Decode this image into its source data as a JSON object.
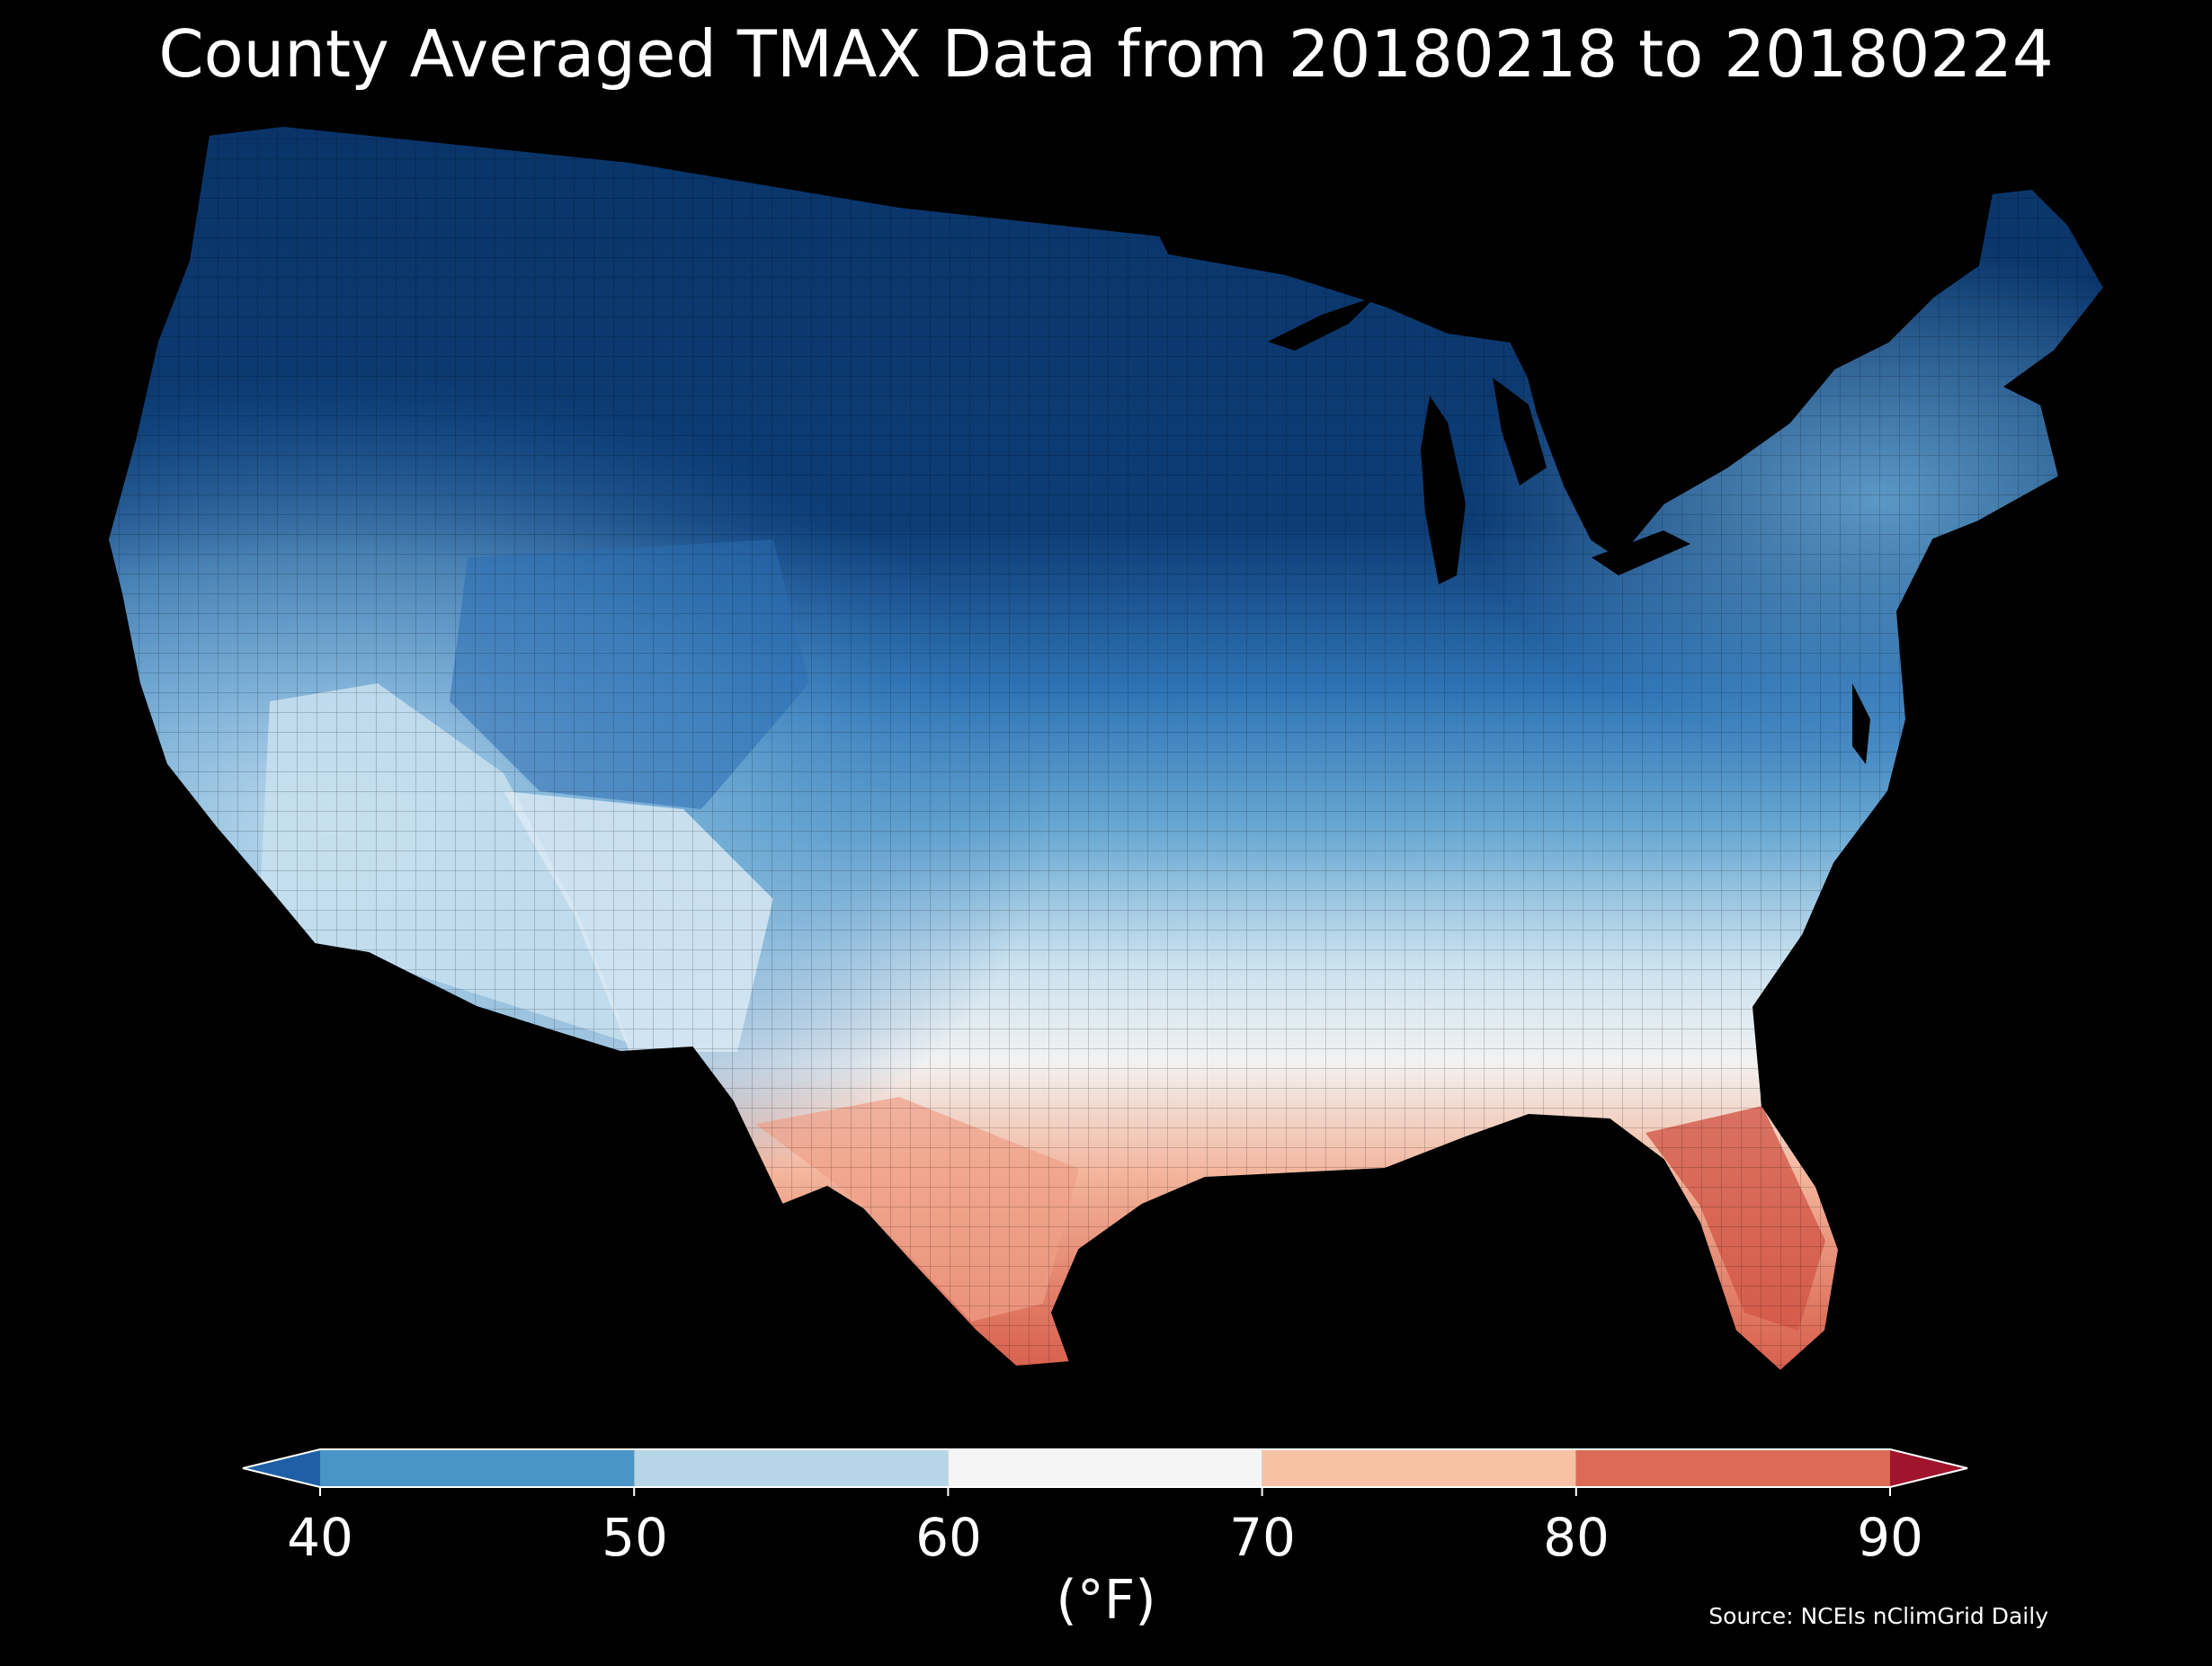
{
  "title": "County Averaged TMAX Data from 20180218 to 20180224",
  "source": "Source: NCEIs nClimGrid Daily",
  "colorbar": {
    "label": "(°F)",
    "ticks": [
      "40",
      "50",
      "60",
      "70",
      "80",
      "90"
    ],
    "bins": [
      {
        "range": "<40",
        "color": "#1f5fa5"
      },
      {
        "range": "40-50",
        "color": "#4995c6"
      },
      {
        "range": "50-60",
        "color": "#b6d6e8"
      },
      {
        "range": "60-70",
        "color": "#f5f5f5"
      },
      {
        "range": "70-80",
        "color": "#f8c1a4"
      },
      {
        "range": "80-90",
        "color": "#dc6a55"
      },
      {
        "range": ">90",
        "color": "#a0142c"
      }
    ]
  },
  "map_regions": [
    {
      "region": "northern-plains",
      "color": "#0a3468"
    },
    {
      "region": "northwest",
      "color": "#2a6fb5"
    },
    {
      "region": "great-basin",
      "color": "#4a90c8"
    },
    {
      "region": "central-plains",
      "color": "#5aa0cf"
    },
    {
      "region": "midwest-northeast",
      "color": "#a9cfe5"
    },
    {
      "region": "southwest-desert",
      "color": "#d2e5f1"
    },
    {
      "region": "mid-south",
      "color": "#eef3f7"
    },
    {
      "region": "southeast",
      "color": "#f3b49b"
    },
    {
      "region": "gulf-florida",
      "color": "#dd6f5a"
    }
  ]
}
